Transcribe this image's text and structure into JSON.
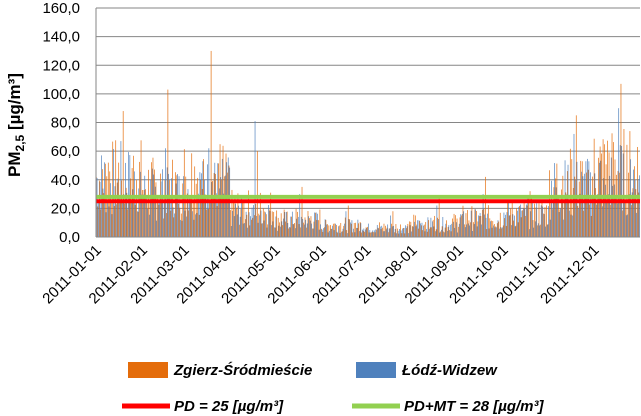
{
  "chart_data": {
    "type": "bar",
    "ylabel": "PM",
    "ylabel_sub": "2,5",
    "ylabel_unit": " [µg/m³]",
    "ylim": [
      0,
      160
    ],
    "yticks": [
      "0,0",
      "20,0",
      "40,0",
      "60,0",
      "80,0",
      "100,0",
      "120,0",
      "140,0",
      "160,0"
    ],
    "xticks": [
      "2011-01-01",
      "2011-02-01",
      "2011-03-01",
      "2011-04-01",
      "2011-05-01",
      "2011-06-01",
      "2011-07-01",
      "2011-08-01",
      "2011-09-01",
      "2011-10-01",
      "2011-11-01",
      "2011-12-01"
    ],
    "grid": true,
    "legend_position": "bottom",
    "series": [
      {
        "name": "Zgierz-Śródmieście",
        "color": "#e46c0a",
        "monthly_typical": [
          50,
          42,
          50,
          24,
          15,
          10,
          8,
          12,
          16,
          20,
          45,
          55
        ],
        "monthly_peak": [
          88,
          103,
          130,
          60,
          35,
          22,
          18,
          28,
          42,
          32,
          85,
          107
        ]
      },
      {
        "name": "Łódź-Widzew",
        "color": "#4f81bd",
        "monthly_typical": [
          45,
          35,
          40,
          20,
          13,
          9,
          7,
          10,
          14,
          18,
          40,
          48
        ],
        "monthly_peak": [
          67,
          62,
          62,
          81,
          30,
          18,
          15,
          22,
          30,
          28,
          72,
          90
        ]
      }
    ],
    "reference_lines": [
      {
        "name": "PD = 25 [µg/m³]",
        "value": 25,
        "color": "#ff0000"
      },
      {
        "name": "PD+MT = 28 [µg/m³]",
        "value": 28,
        "color": "#92d050"
      }
    ]
  }
}
